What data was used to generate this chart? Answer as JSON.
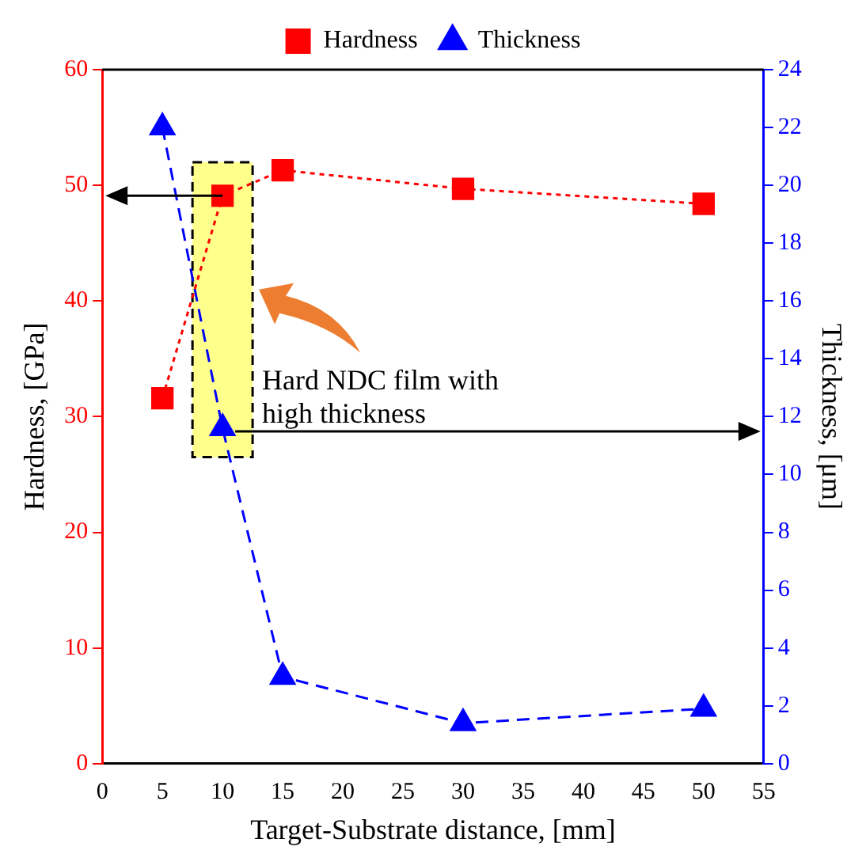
{
  "chart_data": {
    "type": "line",
    "xlabel": "Target-Substrate distance, [mm]",
    "ylabel": "Hardness, [GPa]",
    "y2label": "Thickness, [μm]",
    "x": [
      5,
      10,
      15,
      30,
      50
    ],
    "series": [
      {
        "name": "Hardness",
        "color": "#ff0000",
        "values": [
          31.6,
          49.1,
          51.3,
          49.7,
          48.4
        ],
        "marker": "square",
        "line_style": "dotted"
      },
      {
        "name": "Thickness",
        "color": "#0000ff",
        "values": [
          22,
          11.6,
          3.0,
          1.4,
          1.9
        ],
        "marker": "triangle",
        "line_style": "dashed",
        "axis": "y2"
      }
    ],
    "xlim": [
      0,
      55
    ],
    "xticks": [
      0,
      5,
      10,
      15,
      20,
      25,
      30,
      35,
      40,
      45,
      50,
      55
    ],
    "ylim": [
      0,
      60
    ],
    "yticks": [
      0,
      10,
      20,
      30,
      40,
      50,
      60
    ],
    "y2lim": [
      0,
      24
    ],
    "y2ticks": [
      0,
      2,
      4,
      6,
      8,
      10,
      12,
      14,
      16,
      18,
      20,
      22,
      24
    ],
    "annotations": [
      "Hard NDC film with high thickness"
    ],
    "grid": false,
    "legend": "top"
  }
}
